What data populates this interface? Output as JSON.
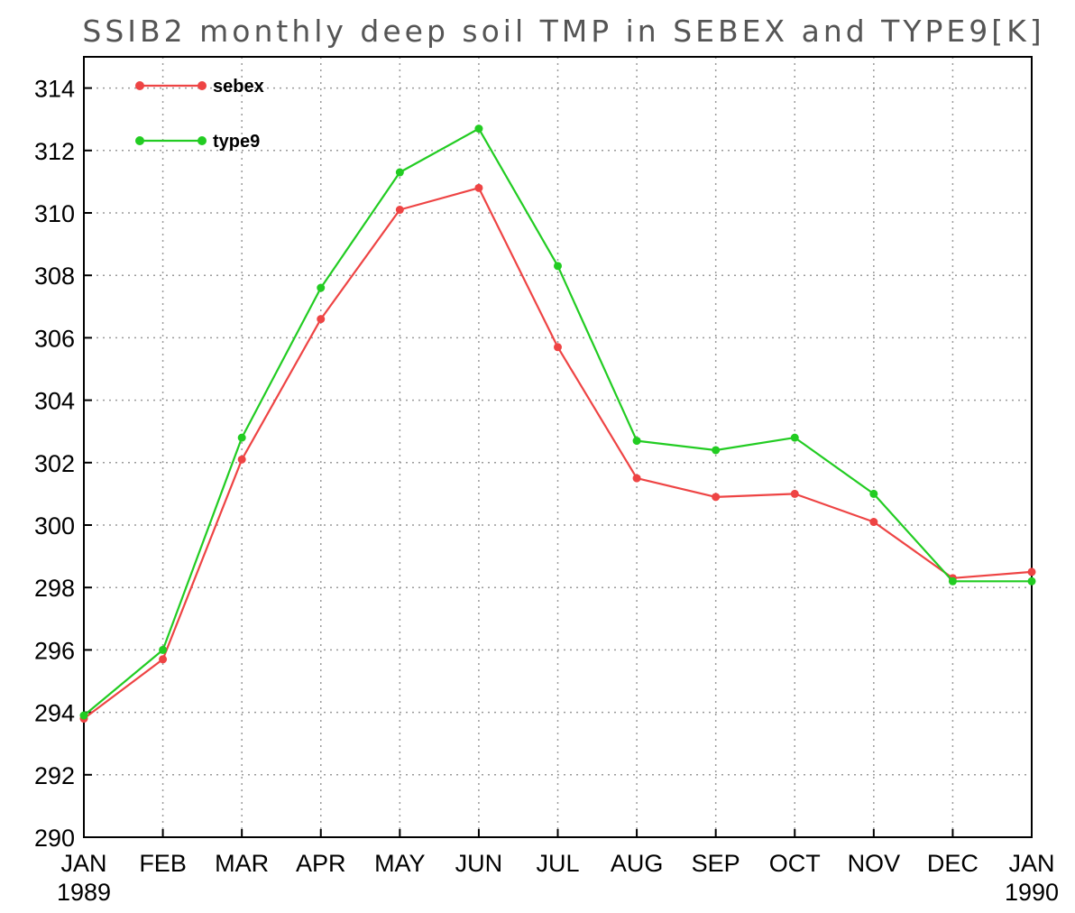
{
  "chart_data": {
    "type": "line",
    "title": "SSIB2 monthly deep soil TMP in SEBEX and TYPE9[K]",
    "categories": [
      "JAN",
      "FEB",
      "MAR",
      "APR",
      "MAY",
      "JUN",
      "JUL",
      "AUG",
      "SEP",
      "OCT",
      "NOV",
      "DEC",
      "JAN"
    ],
    "x_sublabels": [
      {
        "index": 0,
        "label": "1989"
      },
      {
        "index": 12,
        "label": "1990"
      }
    ],
    "ylim": [
      290,
      315
    ],
    "yticks": [
      290,
      292,
      294,
      296,
      298,
      300,
      302,
      304,
      306,
      308,
      310,
      312,
      314
    ],
    "grid": true,
    "legend_position": "top-left",
    "series": [
      {
        "name": "sebex",
        "color": "#ee4444",
        "values": [
          293.8,
          295.7,
          302.1,
          306.6,
          310.1,
          310.8,
          305.7,
          301.5,
          300.9,
          301.0,
          300.1,
          298.3,
          298.5
        ]
      },
      {
        "name": "type9",
        "color": "#22cc22",
        "values": [
          293.9,
          296.0,
          302.8,
          307.6,
          311.3,
          312.7,
          308.3,
          302.7,
          302.4,
          302.8,
          301.0,
          298.2,
          298.2
        ]
      }
    ]
  }
}
